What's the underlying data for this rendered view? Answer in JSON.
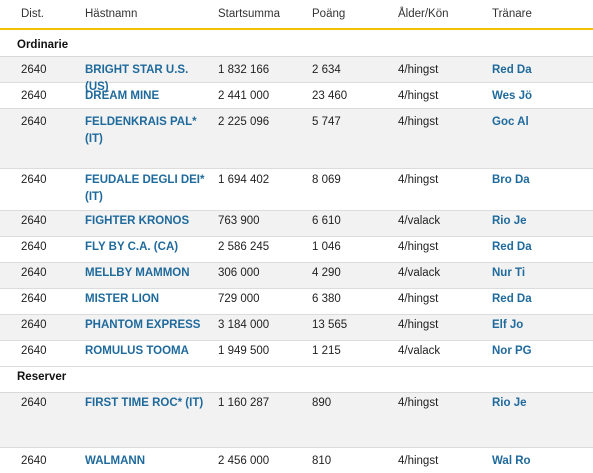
{
  "headers": {
    "dist": "Dist.",
    "name": "Hästnamn",
    "sum": "Startsumma",
    "points": "Poäng",
    "age_sex": "Ålder/Kön",
    "trainer": "Tränare"
  },
  "sections": {
    "ordinarie": "Ordinarie",
    "reserver": "Reserver"
  },
  "ordinarie": [
    {
      "dist": "2640",
      "name": "BRIGHT STAR U.S. (US)",
      "sum": "1 832 166",
      "points": "2 634",
      "age_sex": "4/hingst",
      "trainer": "Red Da"
    },
    {
      "dist": "2640",
      "name": "DREAM MINE",
      "sum": "2 441 000",
      "points": "23 460",
      "age_sex": "4/hingst",
      "trainer": "Wes Jö"
    },
    {
      "dist": "2640",
      "name": "FELDENKRAIS PAL* (IT)",
      "sum": "2 225 096",
      "points": "5 747",
      "age_sex": "4/hingst",
      "trainer": "Goc Al"
    },
    {
      "dist": "2640",
      "name": "FEUDALE DEGLI DEI* (IT)",
      "sum": "1 694 402",
      "points": "8 069",
      "age_sex": "4/hingst",
      "trainer": "Bro Da"
    },
    {
      "dist": "2640",
      "name": "FIGHTER KRONOS",
      "sum": "763 900",
      "points": "6 610",
      "age_sex": "4/valack",
      "trainer": "Rio Je"
    },
    {
      "dist": "2640",
      "name": "FLY BY C.A. (CA)",
      "sum": "2 586 245",
      "points": "1 046",
      "age_sex": "4/hingst",
      "trainer": "Red Da"
    },
    {
      "dist": "2640",
      "name": "MELLBY MAMMON",
      "sum": "306 000",
      "points": "4 290",
      "age_sex": "4/valack",
      "trainer": "Nur Ti"
    },
    {
      "dist": "2640",
      "name": "MISTER LION",
      "sum": "729 000",
      "points": "6 380",
      "age_sex": "4/hingst",
      "trainer": "Red Da"
    },
    {
      "dist": "2640",
      "name": "PHANTOM EXPRESS",
      "sum": "3 184 000",
      "points": "13 565",
      "age_sex": "4/hingst",
      "trainer": "Elf Jo"
    },
    {
      "dist": "2640",
      "name": "ROMULUS TOOMA",
      "sum": "1 949 500",
      "points": "1 215",
      "age_sex": "4/valack",
      "trainer": "Nor PG"
    }
  ],
  "reserver": [
    {
      "dist": "2640",
      "name": "FIRST TIME ROC* (IT)",
      "sum": "1 160 287",
      "points": "890",
      "age_sex": "4/hingst",
      "trainer": "Rio Je"
    },
    {
      "dist": "2640",
      "name": "WALMANN",
      "sum": "2 456 000",
      "points": "810",
      "age_sex": "4/hingst",
      "trainer": "Wal Ro"
    }
  ]
}
